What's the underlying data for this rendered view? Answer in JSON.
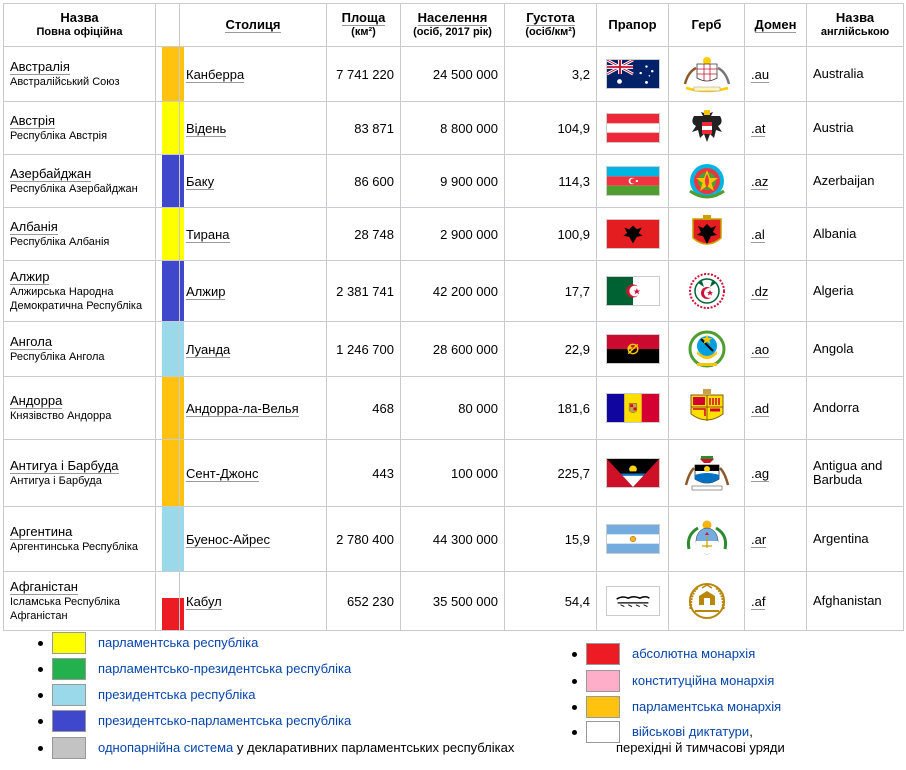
{
  "headers": {
    "name": "Назва",
    "name_sub": "Повна офіційна",
    "capital": "Столиця",
    "area": "Площа",
    "area_sub": "(км²)",
    "population": "Населення",
    "population_sub": "(осіб, 2017 рік)",
    "density": "Густота",
    "density_sub": "(осіб/км²)",
    "flag": "Прапор",
    "coat": "Герб",
    "domain": "Домен",
    "english": "Назва",
    "english_sub": "англійською"
  },
  "colors": {
    "parliamentary_republic": "#ffff00",
    "parl_pres_republic": "#22b14c",
    "presidential_republic": "#99d9ea",
    "pres_parl_republic": "#3f48cc",
    "one_party": "#c3c3c3",
    "absolute_monarchy": "#ed1c24",
    "constitutional_monarchy": "#ffaec9",
    "parliamentary_monarchy": "#ffc20e",
    "military": "#ffffff"
  },
  "rows": [
    {
      "name": "Австралія",
      "full": "Австралійський Союз",
      "color": "#ffc20e",
      "capital": "Канберра",
      "area": "7 741 220",
      "population": "24 500 000",
      "density": "3,2",
      "domain": ".au",
      "english": "Australia",
      "flag": "australia-flag",
      "coat": "australia-coat-of-arms"
    },
    {
      "name": "Австрія",
      "full": "Республіка Австрія",
      "color": "#ffff00",
      "capital": "Відень",
      "area": "83 871",
      "population": "8 800 000",
      "density": "104,9",
      "domain": ".at",
      "english": "Austria",
      "flag": "austria-flag",
      "coat": "austria-coat-of-arms"
    },
    {
      "name": "Азербайджан",
      "full": "Республіка Азербайджан",
      "color": "#3f48cc",
      "capital": "Баку",
      "area": "86 600",
      "population": "9 900 000",
      "density": "114,3",
      "domain": ".az",
      "english": "Azerbaijan",
      "flag": "azerbaijan-flag",
      "coat": "azerbaijan-coat-of-arms"
    },
    {
      "name": "Албанія",
      "full": "Республіка Албанія",
      "color": "#ffff00",
      "capital": "Тирана",
      "area": "28 748",
      "population": "2 900 000",
      "density": "100,9",
      "domain": ".al",
      "english": "Albania",
      "flag": "albania-flag",
      "coat": "albania-coat-of-arms"
    },
    {
      "name": "Алжир",
      "full": "Алжирська Народна Демократична Республіка",
      "color": "#3f48cc",
      "capital": "Алжир",
      "area": "2 381 741",
      "population": "42 200 000",
      "density": "17,7",
      "domain": ".dz",
      "english": "Algeria",
      "flag": "algeria-flag",
      "coat": "algeria-coat-of-arms"
    },
    {
      "name": "Ангола",
      "full": "Республіка Ангола",
      "color": "#99d9ea",
      "capital": "Луанда",
      "area": "1 246 700",
      "population": "28 600 000",
      "density": "22,9",
      "domain": ".ao",
      "english": "Angola",
      "flag": "angola-flag",
      "coat": "angola-coat-of-arms"
    },
    {
      "name": "Андорра",
      "full": "Князівство Андорра",
      "color": "#ffc20e",
      "capital": "Андорра-ла-Велья",
      "area": "468",
      "population": "80 000",
      "density": "181,6",
      "domain": ".ad",
      "english": "Andorra",
      "flag": "andorra-flag",
      "coat": "andorra-coat-of-arms"
    },
    {
      "name": "Антигуа і Барбуда",
      "full": "Антигуа і Барбуда",
      "color": "#ffc20e",
      "capital": "Сент-Джонс",
      "area": "443",
      "population": "100 000",
      "density": "225,7",
      "domain": ".ag",
      "english": "Antigua and Barbuda",
      "flag": "antigua-flag",
      "coat": "antigua-coat-of-arms"
    },
    {
      "name": "Аргентина",
      "full": "Аргентинська Республіка",
      "color": "#99d9ea",
      "capital": "Буенос-Айрес",
      "area": "2 780 400",
      "population": "44 300 000",
      "density": "15,9",
      "domain": ".ar",
      "english": "Argentina",
      "flag": "argentina-flag",
      "coat": "argentina-coat-of-arms"
    },
    {
      "name": "Афганістан",
      "full": "Ісламська Республіка Афганістан",
      "color": "split",
      "capital": "Кабул",
      "area": "652 230",
      "population": "35 500 000",
      "density": "54,4",
      "domain": ".af",
      "english": "Afghanistan",
      "flag": "afghanistan-flag",
      "coat": "afghanistan-coat-of-arms"
    }
  ],
  "legend_left": [
    {
      "color": "#ffff00",
      "label": "парламентська республіка",
      "extra": ""
    },
    {
      "color": "#22b14c",
      "label": "парламентсько-президентська республіка",
      "extra": ""
    },
    {
      "color": "#99d9ea",
      "label": "президентська республіка",
      "extra": ""
    },
    {
      "color": "#3f48cc",
      "label": "президентсько-парламентська республіка",
      "extra": ""
    },
    {
      "color": "#c3c3c3",
      "label": "однопарнійна система",
      "extra": " у декларативних парламентських республіках"
    }
  ],
  "legend_right": [
    {
      "color": "#ed1c24",
      "label": "абсолютна монархія",
      "extra": ""
    },
    {
      "color": "#ffaec9",
      "label": "конституційна монархія",
      "extra": ""
    },
    {
      "color": "#ffc20e",
      "label": "парламентська монархія",
      "extra": ""
    },
    {
      "color": "#ffffff",
      "label": "військові диктатури",
      "extra": ",",
      "line2": "перехідні й тимчасові уряди"
    }
  ]
}
